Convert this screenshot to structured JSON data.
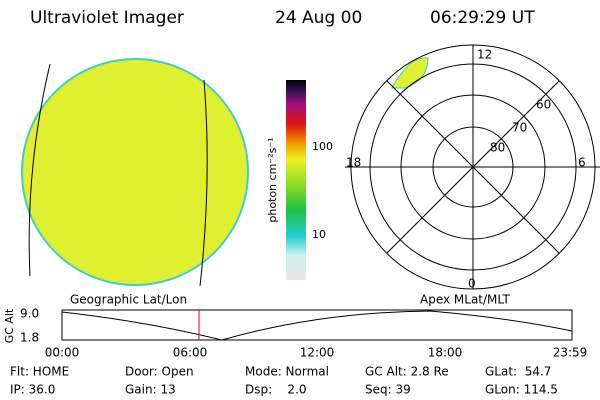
{
  "header": {
    "title": "Ultraviolet Imager",
    "date": "24 Aug 00",
    "time": "06:29:29 UT"
  },
  "colorbar": {
    "label": "photon cm⁻²s⁻¹",
    "ticks": [
      "100",
      "10"
    ]
  },
  "polar": {
    "rings": [
      "80",
      "70",
      "60"
    ],
    "clock": [
      "12",
      "18",
      "6",
      "0"
    ]
  },
  "altitude_panel": {
    "left_title": "Geographic Lat/Lon",
    "right_title": "Apex MLat/MLT",
    "axis_label": "GC Alt",
    "yticks": [
      "9.0",
      "1.8"
    ],
    "xticks": [
      "00:00",
      "06:00",
      "12:00",
      "18:00",
      "23:59"
    ]
  },
  "status": {
    "rows": [
      [
        "Flt: HOME",
        "Door: Open",
        "Mode: Normal",
        "GC Alt: 2.8 Re",
        "GLat:  54.7"
      ],
      [
        "IP: 36.0",
        "Gain: 13",
        "Dsp:    2.0",
        "Seq: 39",
        "GLon: 114.5"
      ]
    ]
  }
}
